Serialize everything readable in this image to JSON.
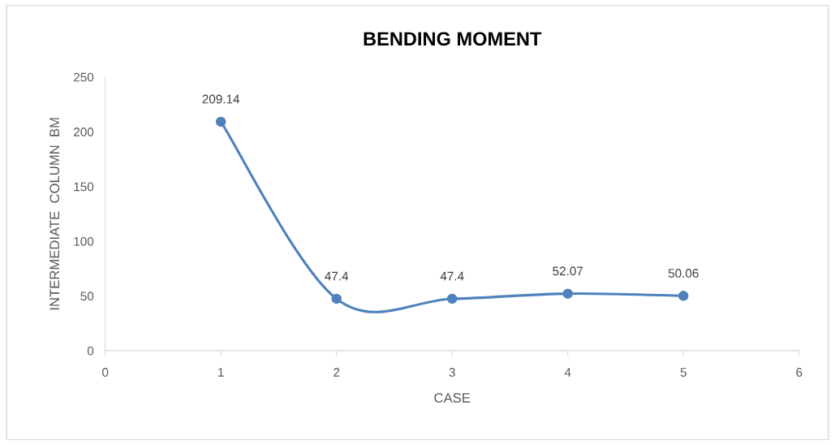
{
  "chart_data": {
    "type": "line",
    "title": "BENDING MOMENT",
    "xlabel": "CASE",
    "ylabel": "INTERMEDIATE  COLUMN  BM",
    "x": [
      1,
      2,
      3,
      4,
      5
    ],
    "series": [
      {
        "color": "#4f81bd",
        "values": [
          209.14,
          47.4,
          47.4,
          52.07,
          50.06
        ]
      }
    ],
    "xlim": [
      0,
      6
    ],
    "xticks": [
      0,
      1,
      2,
      3,
      4,
      5,
      6
    ],
    "ylim": [
      0,
      250
    ],
    "yticks": [
      0,
      50,
      100,
      150,
      200,
      250
    ],
    "grid": false,
    "legend": false,
    "marker": "circle",
    "line_style": "solid",
    "data_labels": true
  }
}
